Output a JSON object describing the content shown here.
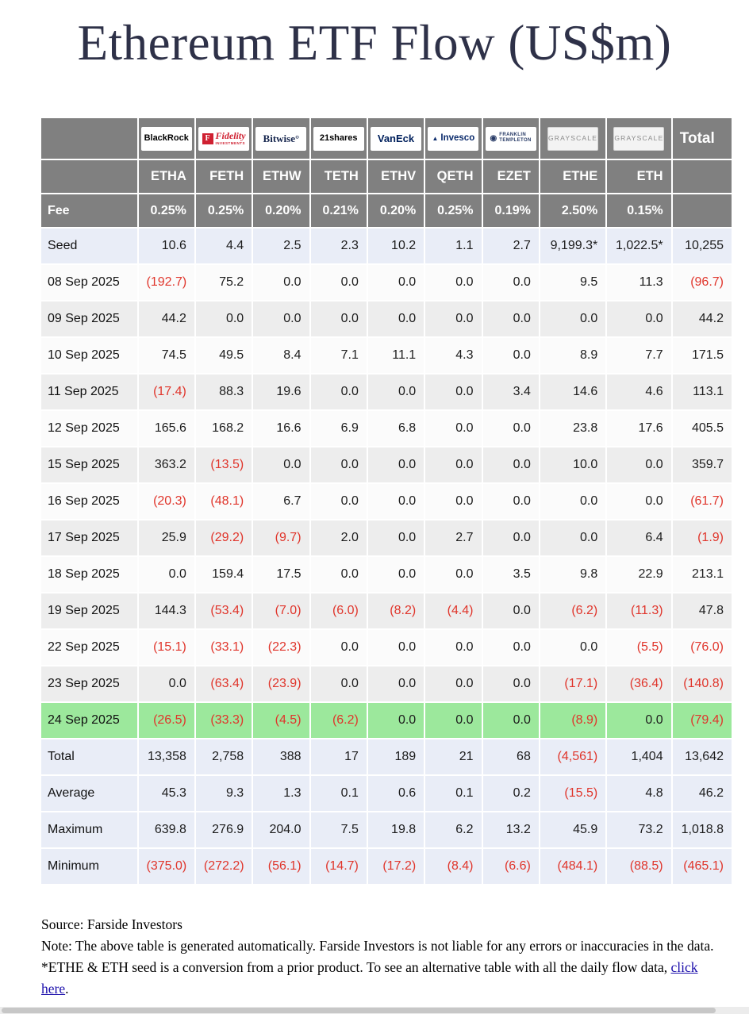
{
  "title": "Ethereum ETF Flow (US$m)",
  "chart_data": {
    "type": "table",
    "title": "Ethereum ETF Flow (US$m)",
    "unit": "US$m",
    "header": {
      "fee_label": "Fee",
      "total_label": "Total"
    },
    "issuers": [
      {
        "name": "BlackRock",
        "ticker": "ETHA",
        "fee": "0.25%",
        "logo": {
          "style": "blackrock",
          "text": "BlackRock"
        }
      },
      {
        "name": "Fidelity",
        "ticker": "FETH",
        "fee": "0.25%",
        "logo": {
          "style": "fidelity",
          "badge": "F",
          "text": "Fidelity",
          "subtext": "INVESTMENTS"
        }
      },
      {
        "name": "Bitwise",
        "ticker": "ETHW",
        "fee": "0.20%",
        "logo": {
          "style": "bitwise",
          "text": "Bitwise°"
        }
      },
      {
        "name": "21shares",
        "ticker": "TETH",
        "fee": "0.21%",
        "logo": {
          "style": "shares21",
          "text": "21shares"
        }
      },
      {
        "name": "VanEck",
        "ticker": "ETHV",
        "fee": "0.20%",
        "logo": {
          "style": "vaneck",
          "text": "VanEck"
        }
      },
      {
        "name": "Invesco",
        "ticker": "QETH",
        "fee": "0.25%",
        "logo": {
          "style": "invesco",
          "icon": "▲",
          "text": "Invesco"
        }
      },
      {
        "name": "Franklin Templeton",
        "ticker": "EZET",
        "fee": "0.19%",
        "logo": {
          "style": "franklin",
          "icon": "◉",
          "text": "FRANKLIN",
          "subtext": "TEMPLETON"
        }
      },
      {
        "name": "Grayscale",
        "ticker": "ETHE",
        "fee": "2.50%",
        "logo": {
          "style": "grayscale",
          "text": "GRAYSCALE"
        }
      },
      {
        "name": "Grayscale",
        "ticker": "ETH",
        "fee": "0.15%",
        "logo": {
          "style": "grayscale",
          "text": "GRAYSCALE"
        }
      }
    ],
    "rows": [
      {
        "label": "Seed",
        "kind": "seed",
        "values": [
          "10.6",
          "4.4",
          "2.5",
          "2.3",
          "10.2",
          "1.1",
          "2.7",
          "9,199.3*",
          "1,022.5*",
          "10,255"
        ]
      },
      {
        "label": "08 Sep 2025",
        "kind": "date",
        "values": [
          "(192.7)",
          "75.2",
          "0.0",
          "0.0",
          "0.0",
          "0.0",
          "0.0",
          "9.5",
          "11.3",
          "(96.7)"
        ]
      },
      {
        "label": "09 Sep 2025",
        "kind": "date",
        "values": [
          "44.2",
          "0.0",
          "0.0",
          "0.0",
          "0.0",
          "0.0",
          "0.0",
          "0.0",
          "0.0",
          "44.2"
        ]
      },
      {
        "label": "10 Sep 2025",
        "kind": "date",
        "values": [
          "74.5",
          "49.5",
          "8.4",
          "7.1",
          "11.1",
          "4.3",
          "0.0",
          "8.9",
          "7.7",
          "171.5"
        ]
      },
      {
        "label": "11 Sep 2025",
        "kind": "date",
        "values": [
          "(17.4)",
          "88.3",
          "19.6",
          "0.0",
          "0.0",
          "0.0",
          "3.4",
          "14.6",
          "4.6",
          "113.1"
        ]
      },
      {
        "label": "12 Sep 2025",
        "kind": "date",
        "values": [
          "165.6",
          "168.2",
          "16.6",
          "6.9",
          "6.8",
          "0.0",
          "0.0",
          "23.8",
          "17.6",
          "405.5"
        ]
      },
      {
        "label": "15 Sep 2025",
        "kind": "date",
        "values": [
          "363.2",
          "(13.5)",
          "0.0",
          "0.0",
          "0.0",
          "0.0",
          "0.0",
          "10.0",
          "0.0",
          "359.7"
        ]
      },
      {
        "label": "16 Sep 2025",
        "kind": "date",
        "values": [
          "(20.3)",
          "(48.1)",
          "6.7",
          "0.0",
          "0.0",
          "0.0",
          "0.0",
          "0.0",
          "0.0",
          "(61.7)"
        ]
      },
      {
        "label": "17 Sep 2025",
        "kind": "date",
        "values": [
          "25.9",
          "(29.2)",
          "(9.7)",
          "2.0",
          "0.0",
          "2.7",
          "0.0",
          "0.0",
          "6.4",
          "(1.9)"
        ]
      },
      {
        "label": "18 Sep 2025",
        "kind": "date",
        "values": [
          "0.0",
          "159.4",
          "17.5",
          "0.0",
          "0.0",
          "0.0",
          "3.5",
          "9.8",
          "22.9",
          "213.1"
        ]
      },
      {
        "label": "19 Sep 2025",
        "kind": "date",
        "values": [
          "144.3",
          "(53.4)",
          "(7.0)",
          "(6.0)",
          "(8.2)",
          "(4.4)",
          "0.0",
          "(6.2)",
          "(11.3)",
          "47.8"
        ]
      },
      {
        "label": "22 Sep 2025",
        "kind": "date",
        "values": [
          "(15.1)",
          "(33.1)",
          "(22.3)",
          "0.0",
          "0.0",
          "0.0",
          "0.0",
          "0.0",
          "(5.5)",
          "(76.0)"
        ]
      },
      {
        "label": "23 Sep 2025",
        "kind": "date",
        "values": [
          "0.0",
          "(63.4)",
          "(23.9)",
          "0.0",
          "0.0",
          "0.0",
          "0.0",
          "(17.1)",
          "(36.4)",
          "(140.8)"
        ]
      },
      {
        "label": "24 Sep 2025",
        "kind": "highlight",
        "values": [
          "(26.5)",
          "(33.3)",
          "(4.5)",
          "(6.2)",
          "0.0",
          "0.0",
          "0.0",
          "(8.9)",
          "0.0",
          "(79.4)"
        ]
      },
      {
        "label": "Total",
        "kind": "summary",
        "values": [
          "13,358",
          "2,758",
          "388",
          "17",
          "189",
          "21",
          "68",
          "(4,561)",
          "1,404",
          "13,642"
        ]
      },
      {
        "label": "Average",
        "kind": "summary",
        "values": [
          "45.3",
          "9.3",
          "1.3",
          "0.1",
          "0.6",
          "0.1",
          "0.2",
          "(15.5)",
          "4.8",
          "46.2"
        ]
      },
      {
        "label": "Maximum",
        "kind": "summary",
        "values": [
          "639.8",
          "276.9",
          "204.0",
          "7.5",
          "19.8",
          "6.2",
          "13.2",
          "45.9",
          "73.2",
          "1,018.8"
        ]
      },
      {
        "label": "Minimum",
        "kind": "summary",
        "values": [
          "(375.0)",
          "(272.2)",
          "(56.1)",
          "(14.7)",
          "(17.2)",
          "(8.4)",
          "(6.6)",
          "(484.1)",
          "(88.5)",
          "(465.1)"
        ]
      }
    ]
  },
  "footer": {
    "source": "Source: Farside Investors",
    "note_before_link": "Note: The above table is generated automatically. Farside Investors is not liable for any errors or inaccuracies in the data. *ETHE & ETH seed is a conversion from a prior product.  To see an alternative table with all the daily flow data, ",
    "link_text": "click here",
    "note_after_link": "."
  },
  "colors": {
    "header_bg": "#808080",
    "negative": "#e0352b",
    "highlight_row": "#9ce89c",
    "seed_row": "#e9edf7",
    "alt_row": "#ededed",
    "link": "#1a0dab"
  }
}
